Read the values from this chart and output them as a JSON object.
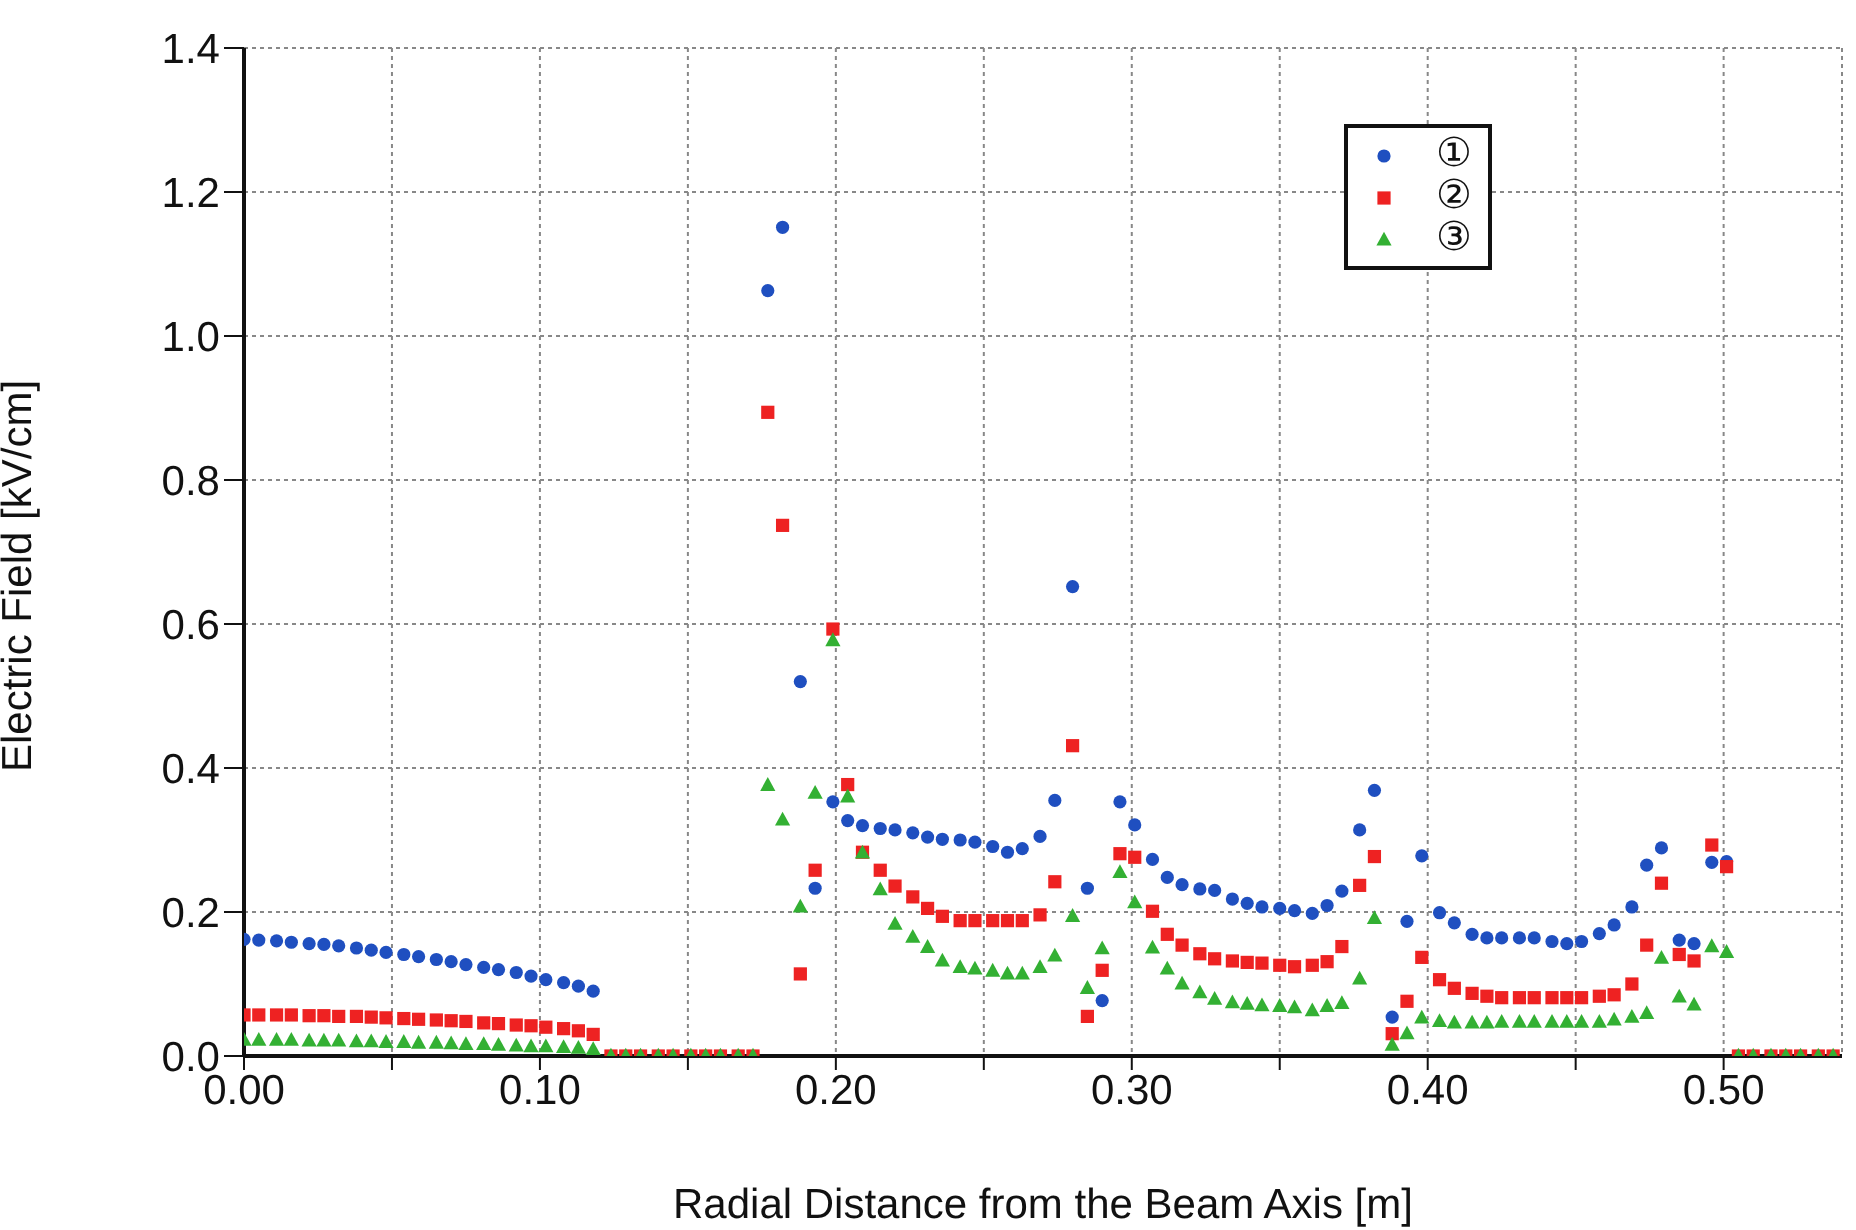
{
  "chart_data": {
    "type": "scatter",
    "xlabel": "Radial Distance from the Beam Axis [m]",
    "ylabel": "Electric Field [kV/cm]",
    "xlim": [
      0,
      0.54
    ],
    "ylim": [
      0,
      1.4
    ],
    "xticks": [
      {
        "value": 0,
        "label": "0.00"
      },
      {
        "value": 0.05,
        "label": null
      },
      {
        "value": 0.1,
        "label": "0.10"
      },
      {
        "value": 0.15,
        "label": null
      },
      {
        "value": 0.2,
        "label": "0.20"
      },
      {
        "value": 0.25,
        "label": null
      },
      {
        "value": 0.3,
        "label": "0.30"
      },
      {
        "value": 0.35,
        "label": null
      },
      {
        "value": 0.4,
        "label": "0.40"
      },
      {
        "value": 0.45,
        "label": null
      },
      {
        "value": 0.5,
        "label": "0.50"
      }
    ],
    "yticks": [
      {
        "value": 0,
        "label": "0.0"
      },
      {
        "value": 0.2,
        "label": "0.2"
      },
      {
        "value": 0.4,
        "label": "0.4"
      },
      {
        "value": 0.6,
        "label": "0.6"
      },
      {
        "value": 0.8,
        "label": "0.8"
      },
      {
        "value": 1,
        "label": "1.0"
      },
      {
        "value": 1.2,
        "label": "1.2"
      },
      {
        "value": 1.4,
        "label": "1.4"
      }
    ],
    "grid": true,
    "legend": "top right",
    "x": [
      0,
      0.005,
      0.011,
      0.016,
      0.022,
      0.027,
      0.032,
      0.038,
      0.043,
      0.048,
      0.054,
      0.059,
      0.065,
      0.07,
      0.075,
      0.081,
      0.086,
      0.092,
      0.097,
      0.102,
      0.108,
      0.113,
      0.118,
      0.124,
      0.129,
      0.134,
      0.14,
      0.145,
      0.151,
      0.156,
      0.161,
      0.167,
      0.172,
      0.177,
      0.182,
      0.188,
      0.193,
      0.199,
      0.204,
      0.209,
      0.215,
      0.22,
      0.226,
      0.231,
      0.236,
      0.242,
      0.247,
      0.253,
      0.258,
      0.263,
      0.269,
      0.274,
      0.28,
      0.285,
      0.29,
      0.296,
      0.301,
      0.307,
      0.312,
      0.317,
      0.323,
      0.328,
      0.334,
      0.339,
      0.344,
      0.35,
      0.355,
      0.361,
      0.366,
      0.371,
      0.377,
      0.382,
      0.388,
      0.393,
      0.398,
      0.404,
      0.409,
      0.415,
      0.42,
      0.425,
      0.431,
      0.436,
      0.442,
      0.447,
      0.452,
      0.458,
      0.463,
      0.469,
      0.474,
      0.479,
      0.485,
      0.49,
      0.496,
      0.501,
      0.505,
      0.51,
      0.516,
      0.521,
      0.526,
      0.532,
      0.537
    ],
    "series": [
      {
        "name": "①",
        "color": "#1f4fc0",
        "marker": "circle",
        "values": [
          0.162,
          0.161,
          0.16,
          0.158,
          0.156,
          0.155,
          0.153,
          0.15,
          0.147,
          0.144,
          0.141,
          0.138,
          0.134,
          0.131,
          0.127,
          0.123,
          0.12,
          0.116,
          0.111,
          0.106,
          0.102,
          0.097,
          0.09,
          null,
          null,
          null,
          null,
          null,
          null,
          null,
          null,
          null,
          null,
          1.063,
          1.151,
          0.52,
          0.233,
          0.353,
          0.327,
          0.32,
          0.316,
          0.314,
          0.31,
          0.304,
          0.301,
          0.3,
          0.297,
          0.291,
          0.283,
          0.288,
          0.305,
          0.355,
          0.652,
          0.233,
          0.077,
          0.353,
          0.321,
          0.273,
          0.248,
          0.238,
          0.232,
          0.23,
          0.218,
          0.212,
          0.207,
          0.205,
          0.202,
          0.198,
          0.209,
          0.229,
          0.314,
          0.369,
          0.054,
          0.187,
          0.278,
          0.199,
          0.185,
          0.169,
          0.164,
          0.164,
          0.164,
          0.164,
          0.159,
          0.156,
          0.159,
          0.17,
          0.182,
          0.207,
          0.265,
          0.289,
          0.161,
          0.156,
          0.269,
          0.27,
          null,
          null,
          null,
          null,
          null,
          null,
          null
        ]
      },
      {
        "name": "②",
        "color": "#ee2222",
        "marker": "square",
        "values": [
          0.057,
          0.057,
          0.057,
          0.057,
          0.056,
          0.056,
          0.055,
          0.055,
          0.054,
          0.053,
          0.052,
          0.051,
          0.05,
          0.049,
          0.048,
          0.046,
          0.045,
          0.043,
          0.042,
          0.04,
          0.038,
          0.035,
          0.03,
          0,
          0,
          0,
          0,
          0,
          0,
          0,
          0,
          0,
          0,
          0.894,
          0.737,
          0.114,
          0.258,
          0.593,
          0.377,
          0.283,
          0.258,
          0.236,
          0.221,
          0.205,
          0.194,
          0.188,
          0.188,
          0.188,
          0.188,
          0.188,
          0.196,
          0.242,
          0.431,
          0.055,
          0.119,
          0.281,
          0.276,
          0.201,
          0.169,
          0.154,
          0.142,
          0.135,
          0.132,
          0.13,
          0.129,
          0.126,
          0.124,
          0.126,
          0.131,
          0.152,
          0.237,
          0.277,
          0.031,
          0.076,
          0.137,
          0.106,
          0.094,
          0.087,
          0.083,
          0.081,
          0.081,
          0.081,
          0.081,
          0.081,
          0.081,
          0.083,
          0.085,
          0.1,
          0.154,
          0.24,
          0.141,
          0.132,
          0.293,
          0.263,
          0,
          0,
          0,
          0,
          0,
          0,
          0
        ]
      },
      {
        "name": "③",
        "color": "#33b033",
        "marker": "triangle",
        "values": [
          0.022,
          0.022,
          0.022,
          0.022,
          0.021,
          0.021,
          0.021,
          0.02,
          0.02,
          0.019,
          0.019,
          0.018,
          0.018,
          0.017,
          0.016,
          0.016,
          0.015,
          0.014,
          0.013,
          0.013,
          0.012,
          0.011,
          0.009,
          0,
          0,
          0,
          0,
          0,
          0,
          0,
          0,
          0,
          0,
          0.376,
          0.328,
          0.207,
          0.365,
          0.577,
          0.36,
          0.282,
          0.231,
          0.183,
          0.165,
          0.151,
          0.132,
          0.123,
          0.121,
          0.118,
          0.114,
          0.114,
          0.123,
          0.139,
          0.194,
          0.094,
          0.149,
          0.255,
          0.213,
          0.15,
          0.121,
          0.1,
          0.088,
          0.079,
          0.074,
          0.072,
          0.07,
          0.069,
          0.067,
          0.063,
          0.069,
          0.073,
          0.107,
          0.191,
          0.015,
          0.031,
          0.053,
          0.048,
          0.046,
          0.046,
          0.046,
          0.047,
          0.047,
          0.047,
          0.047,
          0.047,
          0.047,
          0.047,
          0.05,
          0.054,
          0.059,
          0.136,
          0.082,
          0.071,
          0.152,
          0.144,
          0,
          0,
          0,
          0,
          0,
          0,
          0
        ]
      }
    ]
  }
}
